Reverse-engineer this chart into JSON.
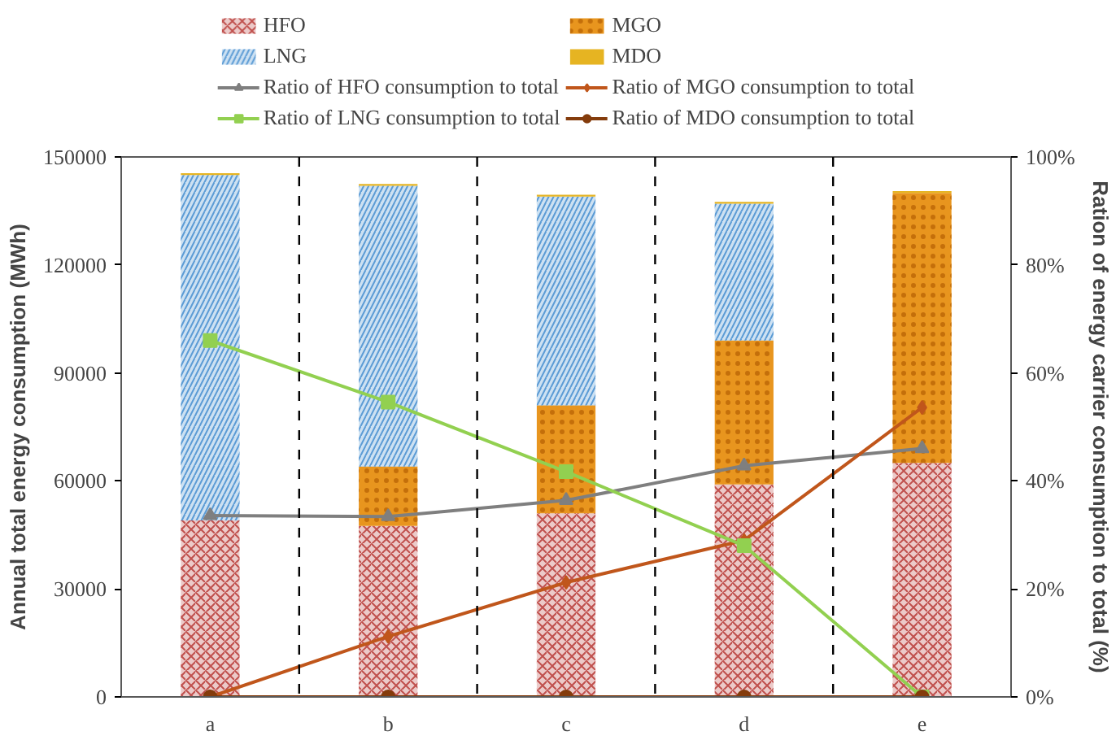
{
  "chart_data": {
    "type": "bar",
    "stacked": true,
    "categories": [
      "a",
      "b",
      "c",
      "d",
      "e"
    ],
    "ylabel": "Annual total energy consumption (MWh)",
    "y2label": "Ration of energy carrier consumption to total (%)",
    "ylim": [
      0,
      150000
    ],
    "yticks": [
      0,
      30000,
      60000,
      90000,
      120000,
      150000
    ],
    "y2lim": [
      0,
      100
    ],
    "y2ticks": [
      {
        "value": 0,
        "label": "0%"
      },
      {
        "value": 20,
        "label": "20%"
      },
      {
        "value": 40,
        "label": "40%"
      },
      {
        "value": 60,
        "label": "60%"
      },
      {
        "value": 80,
        "label": "80%"
      },
      {
        "value": 100,
        "label": "100%"
      }
    ],
    "legend": "top",
    "grid": false,
    "series": [
      {
        "name": "HFO",
        "color": "#c0504d",
        "values": [
          49000,
          47500,
          51000,
          59000,
          65000
        ]
      },
      {
        "name": "MGO",
        "color": "#e8951e",
        "values": [
          0,
          16500,
          30000,
          40000,
          75000
        ]
      },
      {
        "name": "LNG",
        "color": "#5b9bd5",
        "values": [
          96000,
          78000,
          58000,
          38000,
          0
        ]
      },
      {
        "name": "MDO",
        "color": "#e6b422",
        "values": [
          500,
          500,
          500,
          500,
          500
        ]
      },
      {
        "name": "Ratio of HFO consumption to total",
        "type": "line",
        "axis": "y2",
        "marker": "triangle",
        "color": "#7f7f7f",
        "values": [
          33.6,
          33.4,
          36.4,
          42.8,
          46
        ]
      },
      {
        "name": "Ratio of MGO consumption to total",
        "type": "line",
        "axis": "y2",
        "marker": "diamond",
        "color": "#c0561b",
        "values": [
          0,
          11.2,
          21.2,
          29,
          53.6
        ]
      },
      {
        "name": "Ratio of LNG consumption to total",
        "type": "line",
        "axis": "y2",
        "marker": "square",
        "color": "#92d050",
        "values": [
          66,
          54.6,
          41.7,
          28,
          0
        ]
      },
      {
        "name": "Ratio of MDO consumption to total",
        "type": "line",
        "axis": "y2",
        "marker": "circle",
        "color": "#843c0c",
        "values": [
          0,
          0,
          0,
          0,
          0
        ]
      }
    ]
  }
}
